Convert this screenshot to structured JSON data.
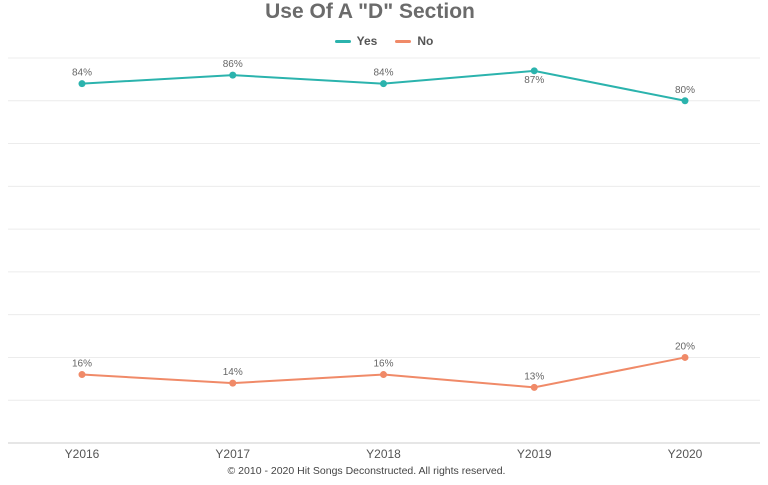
{
  "chart_data": {
    "type": "line",
    "title": "Use Of A \"D\" Section",
    "categories": [
      "Y2016",
      "Y2017",
      "Y2018",
      "Y2019",
      "Y2020"
    ],
    "series": [
      {
        "name": "Yes",
        "color": "#2bb3ad",
        "values": [
          84,
          86,
          84,
          87,
          80
        ],
        "labels": [
          "84%",
          "86%",
          "84%",
          "87%",
          "80%"
        ]
      },
      {
        "name": "No",
        "color": "#f08a68",
        "values": [
          16,
          14,
          16,
          13,
          20
        ],
        "labels": [
          "16%",
          "14%",
          "16%",
          "13%",
          "20%"
        ]
      }
    ],
    "ylim": [
      0,
      90
    ],
    "grid": true,
    "legend_position": "top-center"
  },
  "footer": "© 2010 - 2020 Hit Songs Deconstructed. All rights reserved."
}
